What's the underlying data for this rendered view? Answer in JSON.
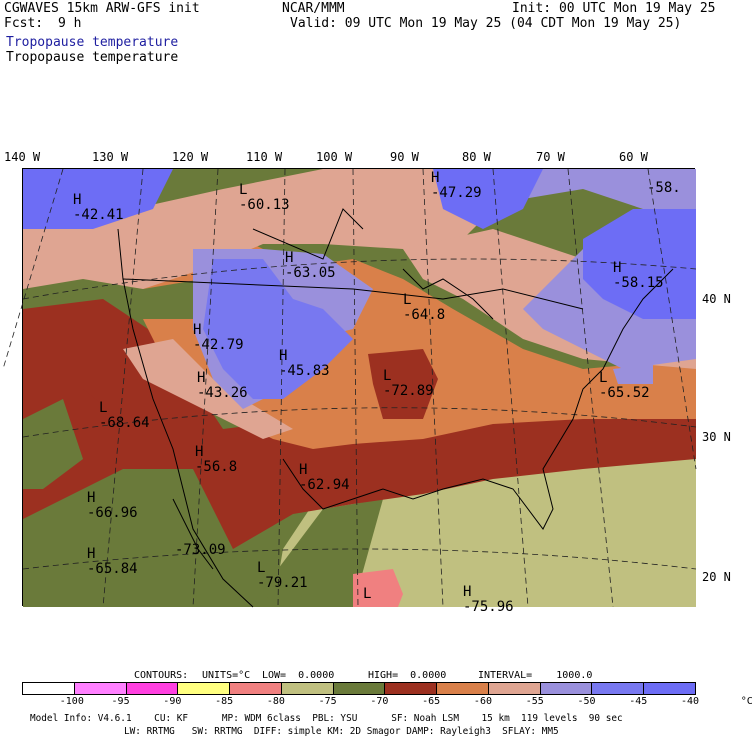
{
  "header": {
    "model": "CGWAVES 15km ARW-GFS init",
    "fcst_label": "Fcst:",
    "fcst_value": "9 h",
    "field_blue": "Tropopause temperature",
    "field_black": "Tropopause temperature",
    "org": "NCAR/MMM",
    "init": "Init: 00 UTC Mon 19 May 25",
    "valid": "Valid: 09 UTC Mon 19 May 25 (04 CDT Mon 19 May 25)"
  },
  "longitudes": [
    "140 W",
    "130 W",
    "120 W",
    "110 W",
    "100 W",
    "90 W",
    "80 W",
    "70 W",
    "60 W"
  ],
  "latitudes": [
    "40 N",
    "30 N",
    "20 N"
  ],
  "map_labels": [
    {
      "id": "h-pacnw",
      "text": "H\n-42.41"
    },
    {
      "id": "l-canada",
      "text": "L\n-60.13"
    },
    {
      "id": "h-hudson",
      "text": "H\n-47.29"
    },
    {
      "id": "l-nf",
      "text": "-58."
    },
    {
      "id": "h-dakota",
      "text": "H\n-63.05"
    },
    {
      "id": "l-greatlakes",
      "text": "L\n-64.8"
    },
    {
      "id": "h-newengland",
      "text": "H\n-58.15"
    },
    {
      "id": "h-idaho",
      "text": "H\n-42.79"
    },
    {
      "id": "h-nebraska",
      "text": "H\n-45.83"
    },
    {
      "id": "l-missouri",
      "text": "L\n-72.89"
    },
    {
      "id": "h-utah",
      "text": "H\n-43.26"
    },
    {
      "id": "l-atlantic",
      "text": "L\n-65.52"
    },
    {
      "id": "l-calif",
      "text": "L\n-68.64"
    },
    {
      "id": "h-arizona",
      "text": "H\n-56.8"
    },
    {
      "id": "h-texas",
      "text": "H\n-62.94"
    },
    {
      "id": "h-pacific1",
      "text": "H\n-66.96"
    },
    {
      "id": "h-baja",
      "text": "-73.09"
    },
    {
      "id": "h-pacific2",
      "text": "H\n-65.84"
    },
    {
      "id": "l-mexico",
      "text": "L\n-79.21"
    },
    {
      "id": "l-gulf",
      "text": "L"
    },
    {
      "id": "h-caribbean",
      "text": "H\n-75.96"
    }
  ],
  "contours_line": {
    "contours": "CONTOURS:",
    "units": "UNITS=°C",
    "low": "LOW=  0.0000",
    "high": "HIGH=  0.0000",
    "interval": "INTERVAL=    1000.0"
  },
  "colorbar": {
    "colors": [
      "#ffffff",
      "#ff80ff",
      "#ff40e0",
      "#ffff80",
      "#f08080",
      "#c0c080",
      "#6a7a3a",
      "#9c3020",
      "#d9804a",
      "#dfa592",
      "#9a90dc",
      "#7878f0",
      "#6d6df5"
    ],
    "ticks": [
      "-100",
      "-95",
      "-90",
      "-85",
      "-80",
      "-75",
      "-70",
      "-65",
      "-60",
      "-55",
      "-50",
      "-45",
      "-40",
      "°C"
    ]
  },
  "footer": {
    "line1": "Model Info: V4.6.1    CU: KF      MP: WDM 6class  PBL: YSU      SF: Noah LSM    15 km  119 levels  90 sec",
    "line2": "LW: RRTMG   SW: RRTMG  DIFF: simple KM: 2D Smagor DAMP: Rayleigh3  SFLAY: MM5"
  }
}
